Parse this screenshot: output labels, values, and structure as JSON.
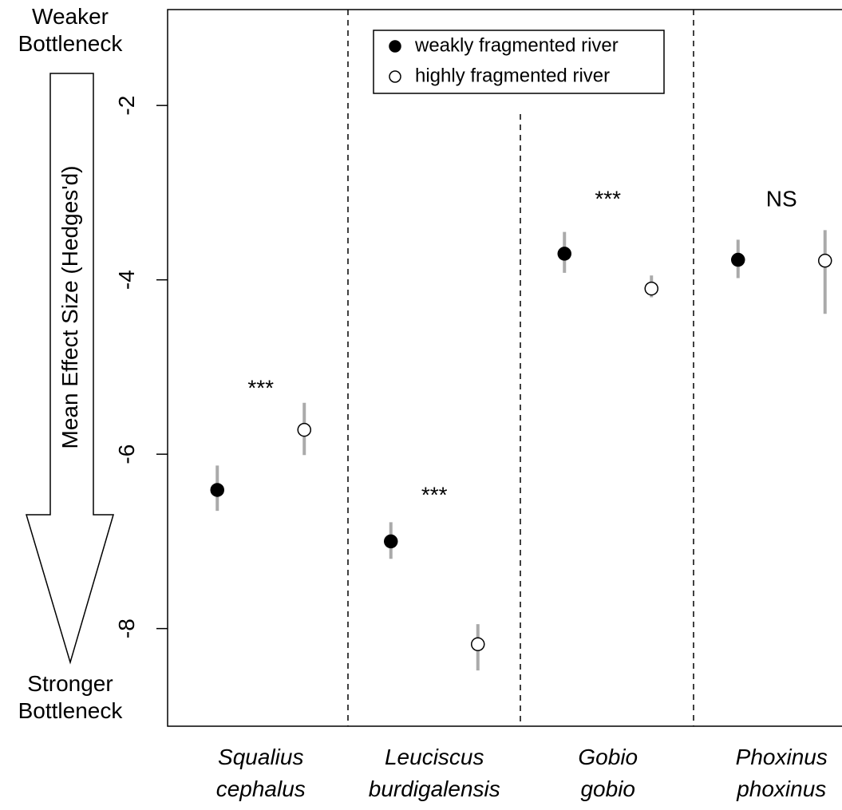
{
  "chart_data": {
    "type": "dotplot",
    "ylabel": "Mean Effect Size (Hedges'd)",
    "top_note": [
      "Weaker",
      "Bottleneck"
    ],
    "bottom_note": [
      "Stronger",
      "Bottleneck"
    ],
    "categories": [
      [
        "Squalius",
        "cephalus"
      ],
      [
        "Leuciscus",
        "burdigalensis"
      ],
      [
        "Gobio",
        "gobio"
      ],
      [
        "Phoxinus",
        "phoxinus"
      ]
    ],
    "series": [
      {
        "name": "weakly fragmented river",
        "color": "#000000",
        "values": [
          -6.41,
          -7.0,
          -3.7,
          -3.77
        ],
        "lower": [
          -6.65,
          -7.2,
          -3.92,
          -3.98
        ],
        "upper": [
          -6.13,
          -6.78,
          -3.45,
          -3.54
        ]
      },
      {
        "name": "highly fragmented river",
        "color": "#ffffff",
        "values": [
          -5.72,
          -8.18,
          -4.1,
          -3.78
        ],
        "lower": [
          -6.01,
          -8.48,
          -4.2,
          -4.39
        ],
        "upper": [
          -5.41,
          -7.95,
          -3.95,
          -3.43
        ]
      }
    ],
    "significance": [
      "***",
      "***",
      "***",
      "NS"
    ],
    "ylim": [
      -9.12,
      -0.9
    ],
    "yticks": [
      -2,
      -4,
      -6,
      -8
    ]
  }
}
